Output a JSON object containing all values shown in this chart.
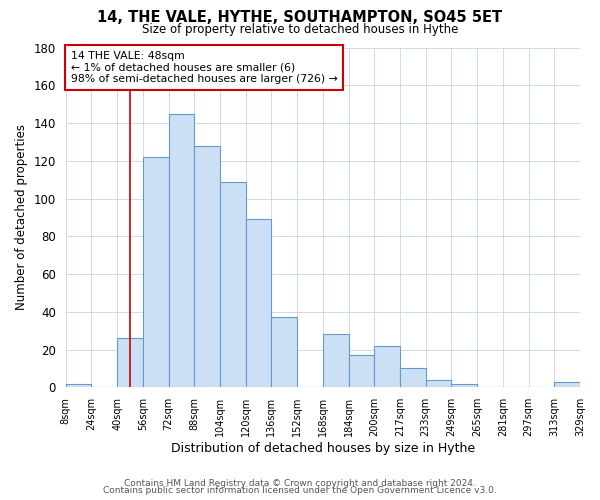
{
  "title": "14, THE VALE, HYTHE, SOUTHAMPTON, SO45 5ET",
  "subtitle": "Size of property relative to detached houses in Hythe",
  "xlabel": "Distribution of detached houses by size in Hythe",
  "ylabel": "Number of detached properties",
  "bar_color": "#cce0f5",
  "bar_edge_color": "#6699cc",
  "bg_color": "#ffffff",
  "grid_color": "#c8d4e8",
  "bin_counts": [
    2,
    0,
    26,
    122,
    145,
    128,
    109,
    89,
    37,
    0,
    28,
    17,
    22,
    10,
    4,
    2,
    0,
    0,
    0,
    3
  ],
  "tick_labels": [
    "8sqm",
    "24sqm",
    "40sqm",
    "56sqm",
    "72sqm",
    "88sqm",
    "104sqm",
    "120sqm",
    "136sqm",
    "152sqm",
    "168sqm",
    "184sqm",
    "200sqm",
    "217sqm",
    "233sqm",
    "249sqm",
    "265sqm",
    "281sqm",
    "297sqm",
    "313sqm",
    "329sqm"
  ],
  "ylim": [
    0,
    180
  ],
  "yticks": [
    0,
    20,
    40,
    60,
    80,
    100,
    120,
    140,
    160,
    180
  ],
  "vline_bin": 2.5,
  "vline_color": "#cc0000",
  "annotation_box_text": "14 THE VALE: 48sqm\n← 1% of detached houses are smaller (6)\n98% of semi-detached houses are larger (726) →",
  "annotation_box_color": "#cc0000",
  "footer_line1": "Contains HM Land Registry data © Crown copyright and database right 2024.",
  "footer_line2": "Contains public sector information licensed under the Open Government Licence v3.0."
}
